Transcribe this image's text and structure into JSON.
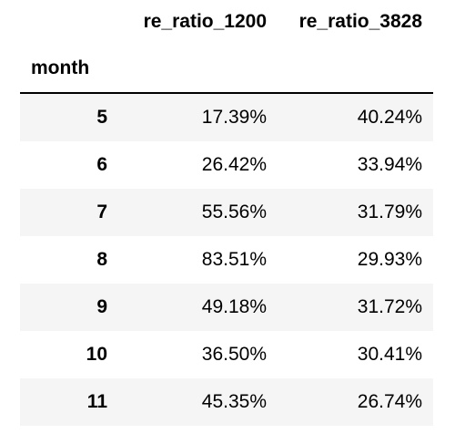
{
  "table": {
    "columns": [
      "re_ratio_1200",
      "re_ratio_3828"
    ],
    "index_name": "month",
    "rows": [
      {
        "month": "5",
        "re_ratio_1200": "17.39%",
        "re_ratio_3828": "40.24%"
      },
      {
        "month": "6",
        "re_ratio_1200": "26.42%",
        "re_ratio_3828": "33.94%"
      },
      {
        "month": "7",
        "re_ratio_1200": "55.56%",
        "re_ratio_3828": "31.79%"
      },
      {
        "month": "8",
        "re_ratio_1200": "83.51%",
        "re_ratio_3828": "29.93%"
      },
      {
        "month": "9",
        "re_ratio_1200": "49.18%",
        "re_ratio_3828": "31.72%"
      },
      {
        "month": "10",
        "re_ratio_1200": "36.50%",
        "re_ratio_3828": "30.41%"
      },
      {
        "month": "11",
        "re_ratio_1200": "45.35%",
        "re_ratio_3828": "26.74%"
      }
    ]
  },
  "colors": {
    "striped_row": "#f5f5f5",
    "header_rule": "#000000",
    "text": "#000000"
  }
}
